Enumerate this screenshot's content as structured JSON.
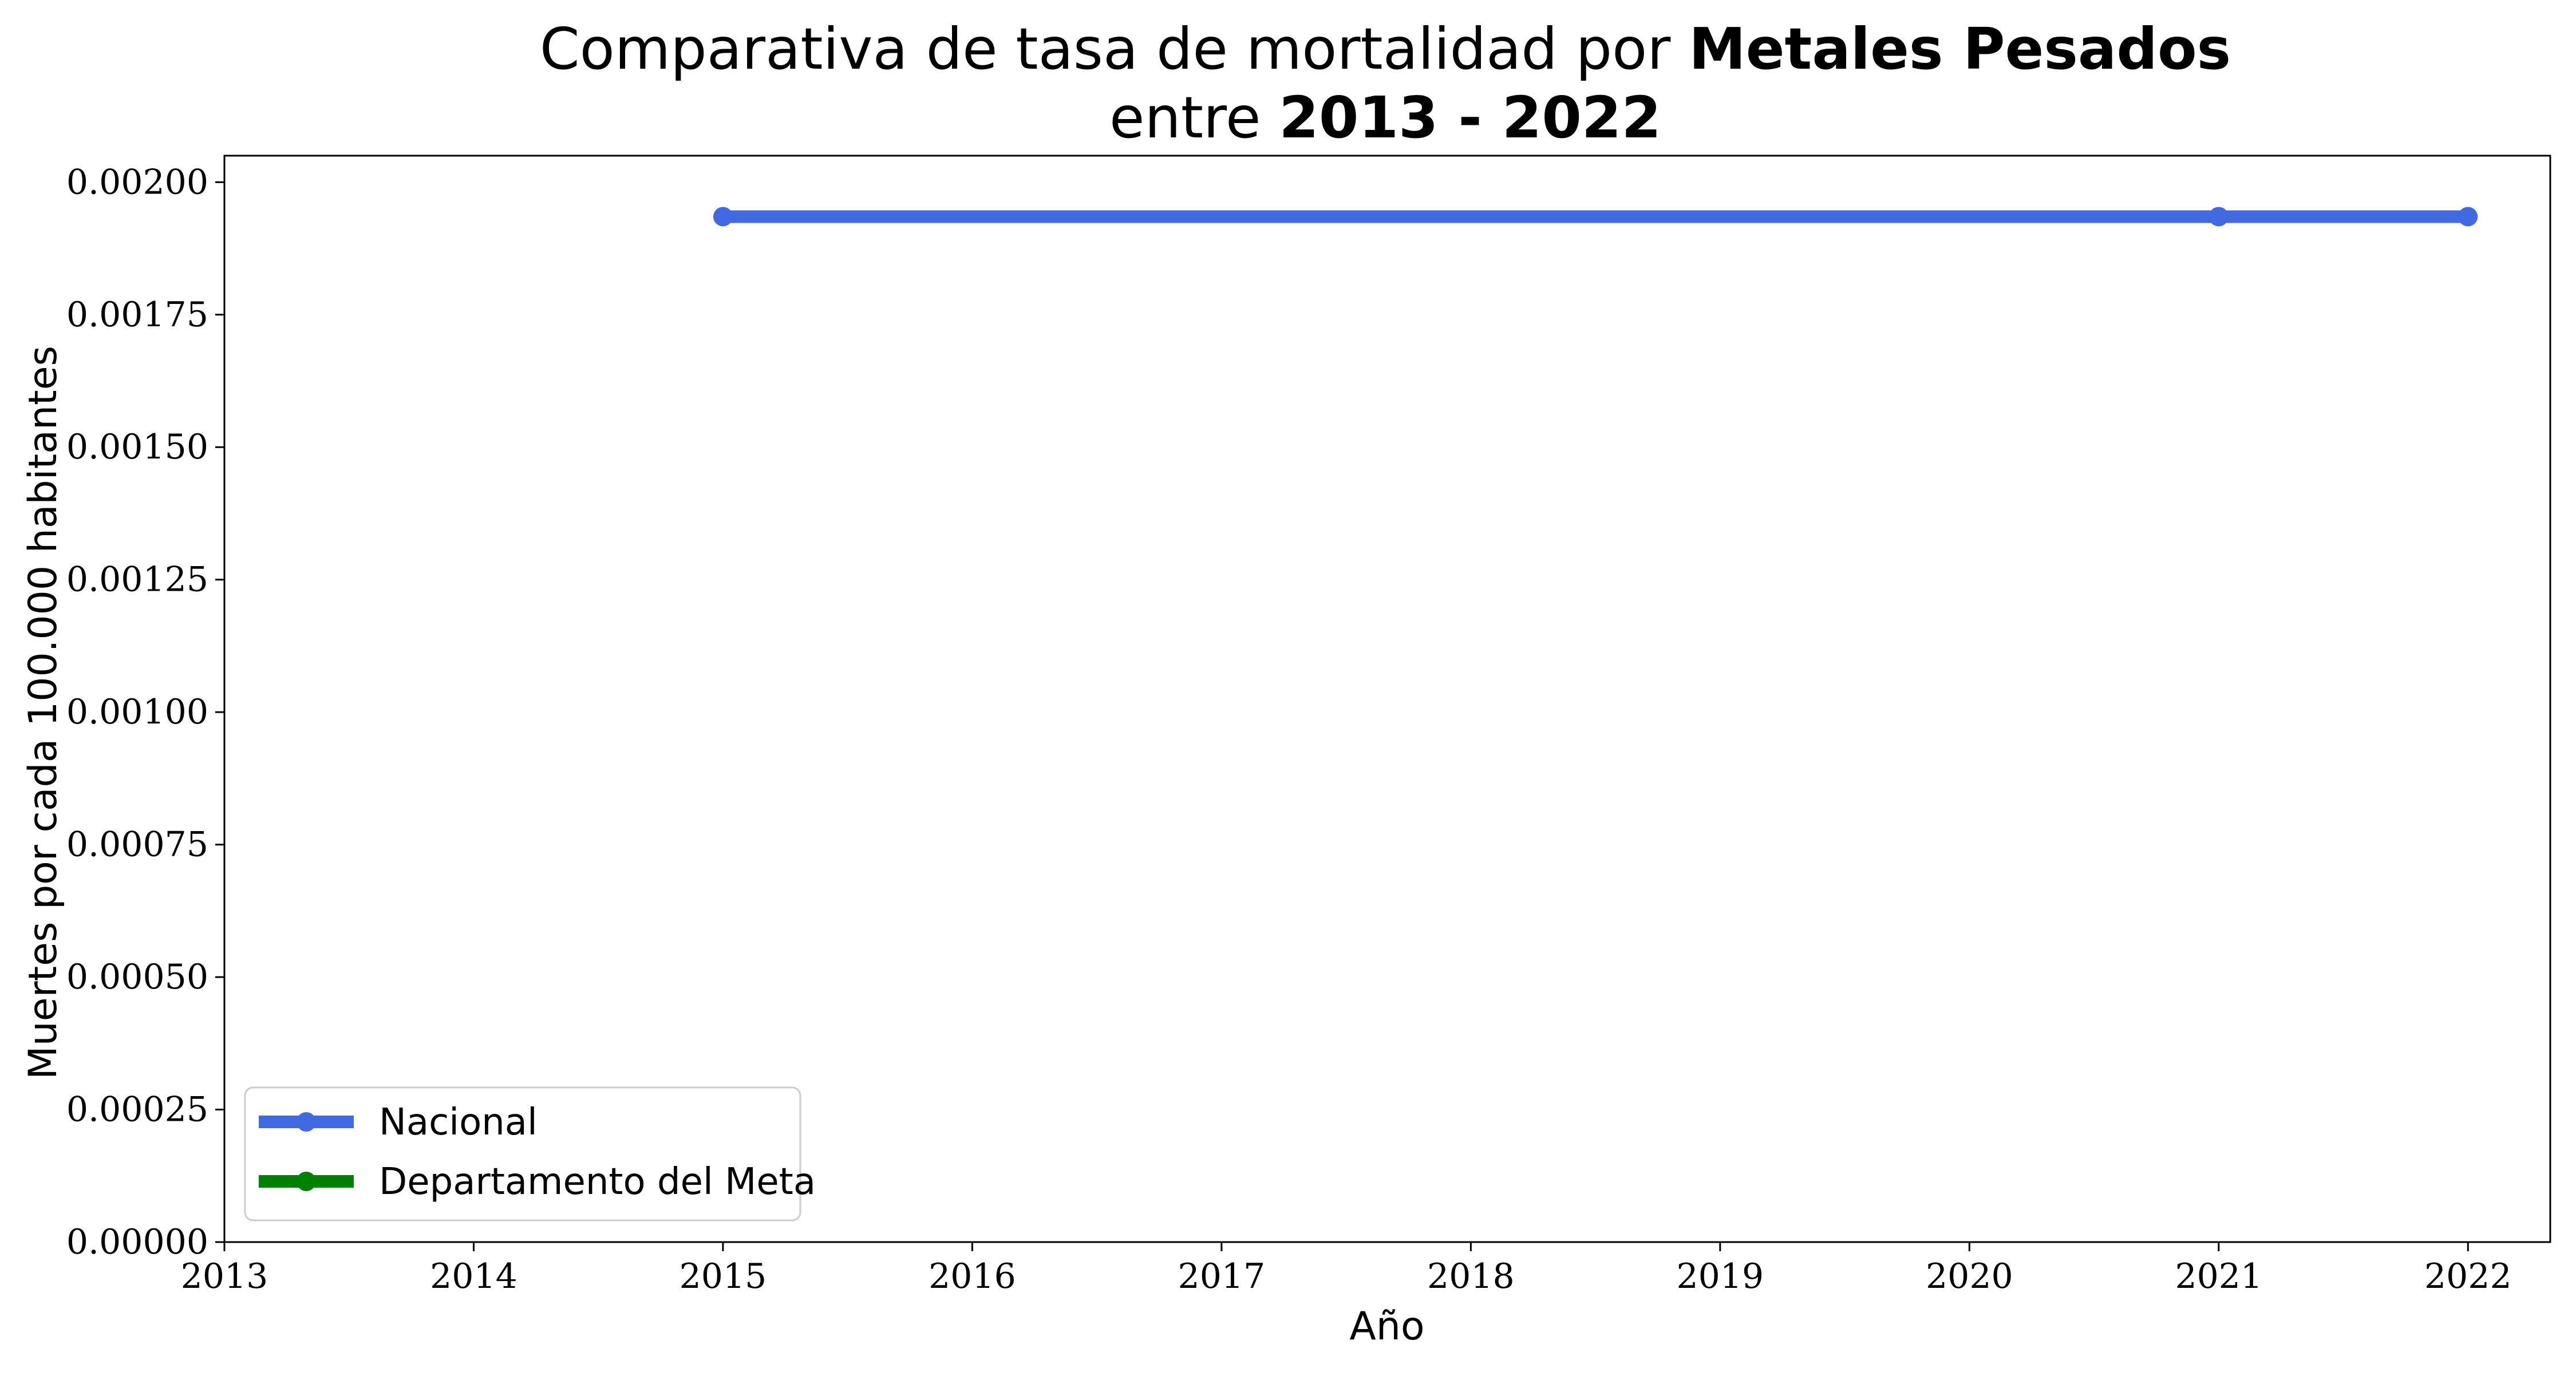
{
  "chart_data": {
    "type": "line",
    "title": {
      "line1_prefix": "Comparativa de tasa de mortalidad por ",
      "line1_bold": "Metales Pesados",
      "line2_prefix": "entre ",
      "line2_bold": "2013 - 2022"
    },
    "xlabel": "Año",
    "ylabel": "Muertes por cada 100.000 habitantes",
    "xlim": [
      2013,
      2022.33
    ],
    "ylim": [
      0,
      0.00205
    ],
    "xticks": [
      2013,
      2014,
      2015,
      2016,
      2017,
      2018,
      2019,
      2020,
      2021,
      2022
    ],
    "yticks": [
      0,
      0.00025,
      0.0005,
      0.00075,
      0.001,
      0.00125,
      0.0015,
      0.00175,
      0.002
    ],
    "ytick_labels": [
      "0.00000",
      "0.00025",
      "0.00050",
      "0.00075",
      "0.00100",
      "0.00125",
      "0.00150",
      "0.00175",
      "0.00200"
    ],
    "grid": false,
    "legend_position": "lower-left",
    "series": [
      {
        "name": "Nacional",
        "color": "#4169E1",
        "x": [
          2015,
          2021,
          2022
        ],
        "y": [
          0.001935,
          0.001935,
          0.001935
        ]
      },
      {
        "name": "Departamento del Meta",
        "color": "#008000",
        "x": [],
        "y": []
      }
    ]
  }
}
